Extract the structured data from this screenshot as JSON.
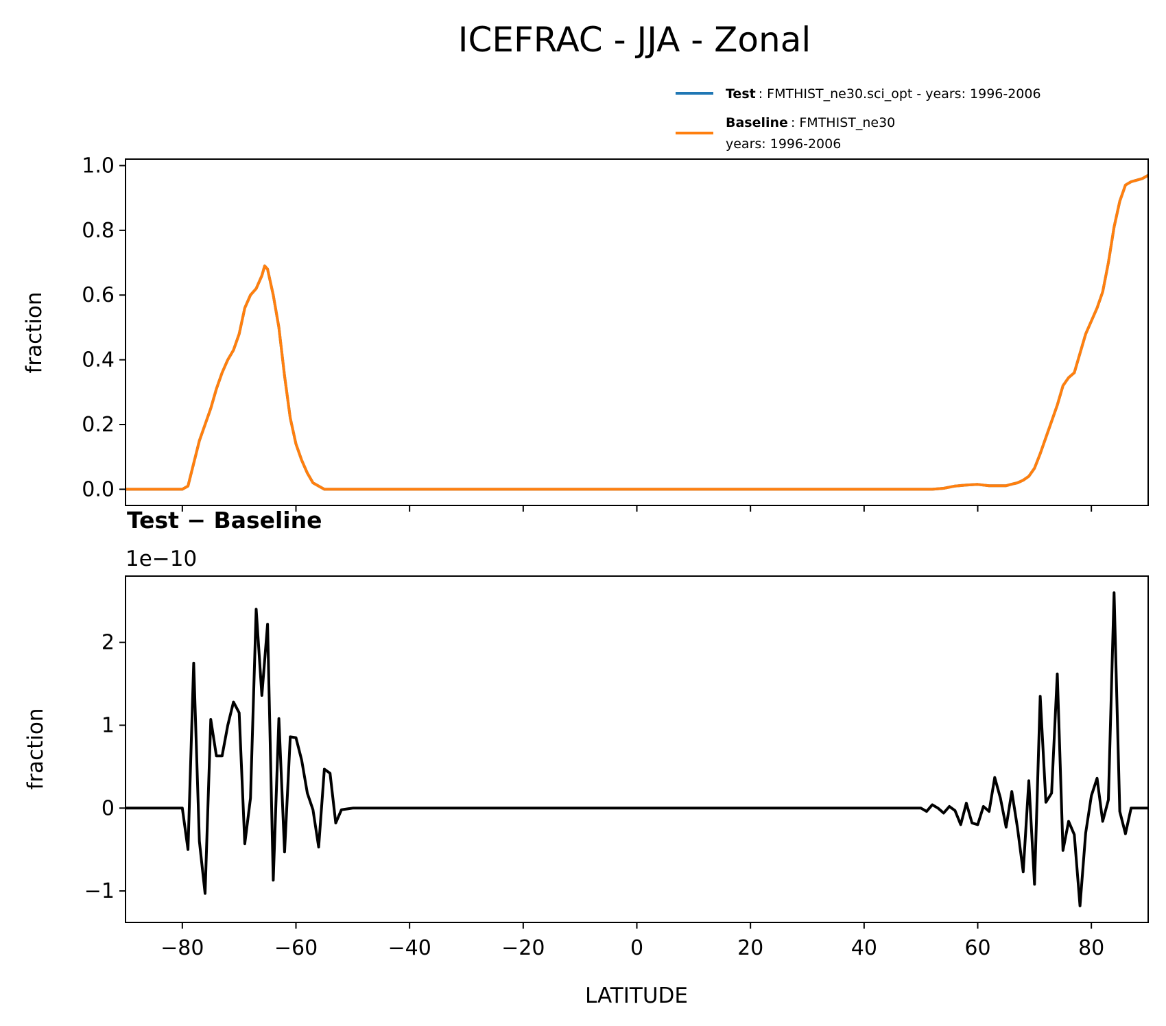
{
  "figure": {
    "title": "ICEFRAC - JJA - Zonal"
  },
  "legend": {
    "test_name": "Test",
    "test_desc": ": FMTHIST_ne30.sci_opt - years: 1996-2006",
    "test_color": "#1f77b4",
    "baseline_name": "Baseline",
    "baseline_desc": ": FMTHIST_ne30",
    "baseline_desc2": "years: 1996-2006",
    "baseline_color": "#ff7f0e"
  },
  "chart_data": [
    {
      "type": "line",
      "ylabel": "fraction",
      "xlim": [
        -90,
        90
      ],
      "ylim": [
        -0.05,
        1.02
      ],
      "yticks": [
        "0.0",
        "0.2",
        "0.4",
        "0.6",
        "0.8",
        "1.0"
      ],
      "yticks_values": [
        0,
        0.2,
        0.4,
        0.6,
        0.8,
        1.0
      ],
      "xticks": [
        -80,
        -60,
        -40,
        -20,
        0,
        20,
        40,
        60,
        80
      ],
      "series": [
        {
          "name": "Test",
          "color": "#1f77b4",
          "x": [
            -90,
            -85,
            -80,
            -79,
            -78,
            -77,
            -76,
            -75,
            -74,
            -73,
            -72,
            -71,
            -70,
            -69,
            -68,
            -67,
            -66,
            -65.5,
            -65,
            -64,
            -63,
            -62,
            -61,
            -60,
            -59,
            -58,
            -57,
            -56,
            -55,
            -54,
            -52,
            -50,
            -40,
            -20,
            0,
            20,
            40,
            50,
            52,
            54,
            56,
            58,
            60,
            61,
            62,
            63,
            64,
            65,
            66,
            67,
            68,
            69,
            70,
            71,
            72,
            73,
            74,
            75,
            76,
            77,
            78,
            79,
            80,
            81,
            82,
            83,
            84,
            85,
            86,
            87,
            88,
            89,
            90
          ],
          "y": [
            0,
            0,
            0,
            0.01,
            0.08,
            0.15,
            0.2,
            0.25,
            0.31,
            0.36,
            0.4,
            0.43,
            0.48,
            0.56,
            0.6,
            0.62,
            0.66,
            0.69,
            0.68,
            0.6,
            0.5,
            0.35,
            0.22,
            0.14,
            0.09,
            0.05,
            0.02,
            0.01,
            0,
            0,
            0,
            0,
            0,
            0,
            0,
            0,
            0,
            0,
            0,
            0.003,
            0.01,
            0.013,
            0.015,
            0.013,
            0.011,
            0.011,
            0.011,
            0.011,
            0.016,
            0.02,
            0.028,
            0.04,
            0.065,
            0.11,
            0.16,
            0.21,
            0.26,
            0.32,
            0.345,
            0.36,
            0.42,
            0.48,
            0.52,
            0.56,
            0.61,
            0.7,
            0.81,
            0.89,
            0.94,
            0.95,
            0.955,
            0.96,
            0.97
          ]
        },
        {
          "name": "Baseline",
          "color": "#ff7f0e",
          "x": [
            -90,
            -85,
            -80,
            -79,
            -78,
            -77,
            -76,
            -75,
            -74,
            -73,
            -72,
            -71,
            -70,
            -69,
            -68,
            -67,
            -66,
            -65.5,
            -65,
            -64,
            -63,
            -62,
            -61,
            -60,
            -59,
            -58,
            -57,
            -56,
            -55,
            -54,
            -52,
            -50,
            -40,
            -20,
            0,
            20,
            40,
            50,
            52,
            54,
            56,
            58,
            60,
            61,
            62,
            63,
            64,
            65,
            66,
            67,
            68,
            69,
            70,
            71,
            72,
            73,
            74,
            75,
            76,
            77,
            78,
            79,
            80,
            81,
            82,
            83,
            84,
            85,
            86,
            87,
            88,
            89,
            90
          ],
          "y": [
            0,
            0,
            0,
            0.01,
            0.08,
            0.15,
            0.2,
            0.25,
            0.31,
            0.36,
            0.4,
            0.43,
            0.48,
            0.56,
            0.6,
            0.62,
            0.66,
            0.69,
            0.68,
            0.6,
            0.5,
            0.35,
            0.22,
            0.14,
            0.09,
            0.05,
            0.02,
            0.01,
            0,
            0,
            0,
            0,
            0,
            0,
            0,
            0,
            0,
            0,
            0,
            0.003,
            0.01,
            0.013,
            0.015,
            0.013,
            0.011,
            0.011,
            0.011,
            0.011,
            0.016,
            0.02,
            0.028,
            0.04,
            0.065,
            0.11,
            0.16,
            0.21,
            0.26,
            0.32,
            0.345,
            0.36,
            0.42,
            0.48,
            0.52,
            0.56,
            0.61,
            0.7,
            0.81,
            0.89,
            0.94,
            0.95,
            0.955,
            0.96,
            0.97
          ]
        }
      ]
    },
    {
      "type": "line",
      "title": "Test − Baseline",
      "offset_text": "1e−10",
      "ylabel": "fraction",
      "xlabel": "LATITUDE",
      "xlim": [
        -90,
        90
      ],
      "ylim": [
        -1.38,
        2.8
      ],
      "yticks": [
        "−1",
        "0",
        "1",
        "2"
      ],
      "yticks_values": [
        -1,
        0,
        1,
        2
      ],
      "xticks": [
        "−80",
        "−60",
        "−40",
        "−20",
        "0",
        "20",
        "40",
        "60",
        "80"
      ],
      "xticks_values": [
        -80,
        -60,
        -40,
        -20,
        0,
        20,
        40,
        60,
        80
      ],
      "series": [
        {
          "name": "Test − Baseline",
          "color": "#000000",
          "x": [
            -90,
            -85,
            -80,
            -79,
            -78,
            -77,
            -76,
            -75,
            -74,
            -73,
            -72,
            -71,
            -70,
            -69,
            -68,
            -67,
            -66,
            -65,
            -64,
            -63,
            -62,
            -61,
            -60,
            -59,
            -58,
            -57,
            -56,
            -55,
            -54,
            -53,
            -52,
            -50,
            -40,
            -20,
            0,
            20,
            40,
            50,
            51,
            52,
            53,
            54,
            55,
            56,
            57,
            58,
            59,
            60,
            61,
            62,
            63,
            64,
            65,
            66,
            67,
            68,
            69,
            70,
            71,
            72,
            73,
            74,
            75,
            76,
            77,
            78,
            79,
            80,
            81,
            82,
            83,
            84,
            85,
            86,
            87,
            88,
            89,
            90
          ],
          "y": [
            0,
            0,
            0,
            -0.5,
            1.75,
            -0.4,
            -1.03,
            1.07,
            0.63,
            0.63,
            1.0,
            1.28,
            1.15,
            -0.43,
            0.12,
            2.4,
            1.36,
            2.22,
            -0.87,
            1.08,
            -0.53,
            0.86,
            0.85,
            0.58,
            0.18,
            -0.02,
            -0.47,
            0.47,
            0.42,
            -0.18,
            -0.02,
            0,
            0,
            0,
            0,
            0,
            0,
            0,
            -0.04,
            0.04,
            0,
            -0.06,
            0.02,
            -0.03,
            -0.2,
            0.06,
            -0.18,
            -0.2,
            0.02,
            -0.04,
            0.37,
            0.12,
            -0.23,
            0.2,
            -0.24,
            -0.77,
            0.33,
            -0.92,
            1.35,
            0.07,
            0.18,
            1.62,
            -0.51,
            -0.16,
            -0.32,
            -1.18,
            -0.3,
            0.15,
            0.36,
            -0.16,
            0.1,
            2.6,
            -0.04,
            -0.31,
            0,
            0,
            0,
            0
          ]
        }
      ]
    }
  ]
}
